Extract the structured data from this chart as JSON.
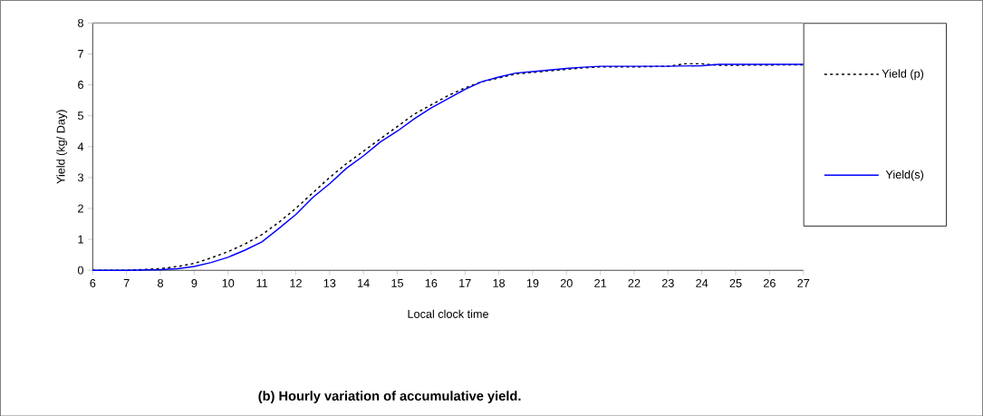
{
  "chart_data": {
    "type": "line",
    "title": "(b) Hourly variation of accumulative yield.",
    "xlabel": "Local clock time",
    "ylabel": "Yield (kg/ Day)",
    "xlim": [
      6,
      27
    ],
    "ylim": [
      0,
      8
    ],
    "xticks": [
      6,
      7,
      8,
      9,
      10,
      11,
      12,
      13,
      14,
      15,
      16,
      17,
      18,
      19,
      20,
      21,
      22,
      23,
      24,
      25,
      26,
      27
    ],
    "yticks": [
      0,
      1,
      2,
      3,
      4,
      5,
      6,
      7,
      8
    ],
    "grid": false,
    "legend": "right",
    "marker": "none",
    "series": [
      {
        "name": "Yield (p)",
        "color": "#000000",
        "line_style": "dotted",
        "x": [
          6,
          7,
          8,
          8.5,
          9,
          9.5,
          10,
          10.5,
          11,
          11.5,
          12,
          12.5,
          13,
          13.5,
          14,
          14.5,
          15,
          15.5,
          16,
          16.5,
          17,
          17.5,
          18,
          18.5,
          19,
          19.5,
          20,
          20.5,
          21,
          22,
          23,
          23.5,
          24,
          24.5,
          25,
          27
        ],
        "values": [
          0,
          0,
          0.05,
          0.12,
          0.22,
          0.4,
          0.6,
          0.85,
          1.15,
          1.55,
          2.0,
          2.5,
          3.0,
          3.45,
          3.85,
          4.25,
          4.65,
          5.05,
          5.35,
          5.65,
          5.9,
          6.1,
          6.22,
          6.35,
          6.4,
          6.45,
          6.5,
          6.55,
          6.58,
          6.58,
          6.6,
          6.68,
          6.68,
          6.63,
          null,
          6.65
        ]
      },
      {
        "name": "Yield(s)",
        "color": "#0000ff",
        "line_style": "solid",
        "x": [
          6,
          7,
          8,
          8.5,
          9,
          9.5,
          10,
          10.5,
          11,
          11.5,
          12,
          12.5,
          13,
          13.5,
          14,
          14.5,
          15,
          15.5,
          16,
          16.5,
          17,
          17.5,
          18,
          18.5,
          19,
          19.5,
          20,
          20.5,
          21,
          22,
          23,
          24,
          24.5,
          25,
          27
        ],
        "values": [
          0,
          0,
          0.02,
          0.05,
          0.12,
          0.25,
          0.42,
          0.65,
          0.92,
          1.35,
          1.8,
          2.35,
          2.8,
          3.3,
          3.7,
          4.15,
          4.5,
          4.9,
          5.25,
          5.55,
          5.85,
          6.1,
          6.25,
          6.38,
          6.43,
          6.48,
          6.53,
          6.57,
          6.6,
          6.6,
          6.6,
          6.62,
          6.66,
          6.66,
          6.66
        ]
      }
    ]
  }
}
